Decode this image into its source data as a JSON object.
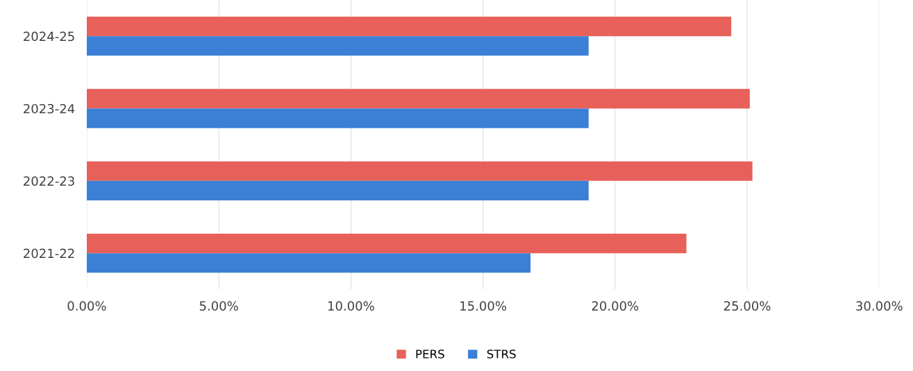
{
  "chart_data": {
    "type": "bar",
    "orientation": "horizontal",
    "categories": [
      "2024-25",
      "2023-24",
      "2022-23",
      "2021-22"
    ],
    "series": [
      {
        "name": "PERS",
        "color": "#e8605a",
        "values": [
          24.4,
          25.1,
          25.2,
          22.7
        ]
      },
      {
        "name": "STRS",
        "color": "#3b80d6",
        "values": [
          19.0,
          19.0,
          19.0,
          16.8
        ]
      }
    ],
    "xlim": [
      0,
      30
    ],
    "xticks": [
      {
        "value": 0,
        "label": "0.00%"
      },
      {
        "value": 5,
        "label": "5.00%"
      },
      {
        "value": 10,
        "label": "10.00%"
      },
      {
        "value": 15,
        "label": "15.00%"
      },
      {
        "value": 20,
        "label": "20.00%"
      },
      {
        "value": 25,
        "label": "25.00%"
      },
      {
        "value": 30,
        "label": "30.00%"
      }
    ],
    "grid": "x",
    "legend": "bottom"
  }
}
